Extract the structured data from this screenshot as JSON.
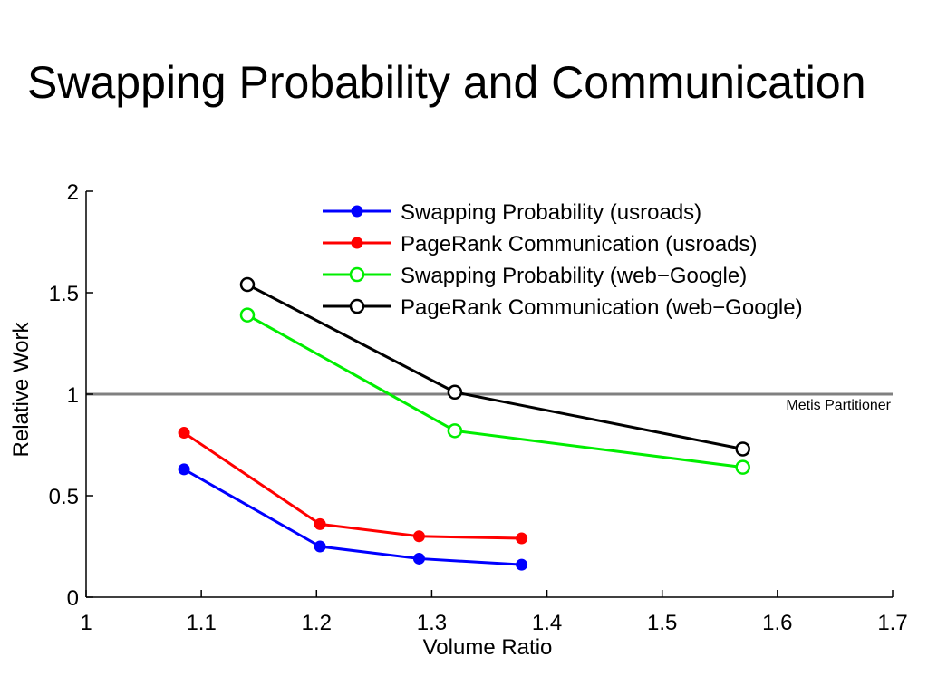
{
  "slide": {
    "title": "Swapping Probability and Communication"
  },
  "chart_data": {
    "type": "line",
    "xlabel": "Volume Ratio",
    "ylabel": "Relative Work",
    "xlim": [
      1,
      1.7
    ],
    "ylim": [
      0,
      2
    ],
    "xticks": [
      1,
      1.1,
      1.2,
      1.3,
      1.4,
      1.5,
      1.6,
      1.7
    ],
    "xtick_labels": [
      "1",
      "1.1",
      "1.2",
      "1.3",
      "1.4",
      "1.5",
      "1.6",
      "1.7"
    ],
    "yticks": [
      0,
      0.5,
      1,
      1.5,
      2
    ],
    "ytick_labels": [
      "0",
      "0.5",
      "1",
      "1.5",
      "2"
    ],
    "grid": false,
    "legend_position": "top-right",
    "series": [
      {
        "name": "Swapping Probability (usroads)",
        "color": "#0000ff",
        "marker": "filled-circle",
        "x": [
          1.085,
          1.203,
          1.289,
          1.378
        ],
        "y": [
          0.63,
          0.25,
          0.19,
          0.16
        ]
      },
      {
        "name": "PageRank Communication (usroads)",
        "color": "#ff0000",
        "marker": "filled-circle",
        "x": [
          1.085,
          1.203,
          1.289,
          1.378
        ],
        "y": [
          0.81,
          0.36,
          0.3,
          0.29
        ]
      },
      {
        "name": "Swapping Probability (web−Google)",
        "color": "#00ee00",
        "marker": "open-circle",
        "x": [
          1.14,
          1.32,
          1.57
        ],
        "y": [
          1.39,
          0.82,
          0.64
        ]
      },
      {
        "name": "PageRank Communication (web−Google)",
        "color": "#000000",
        "marker": "open-circle",
        "x": [
          1.14,
          1.32,
          1.57
        ],
        "y": [
          1.54,
          1.01,
          0.73
        ]
      }
    ],
    "reference_line": {
      "y": 1,
      "label": "Metis Partitioner",
      "color": "#808080"
    }
  }
}
